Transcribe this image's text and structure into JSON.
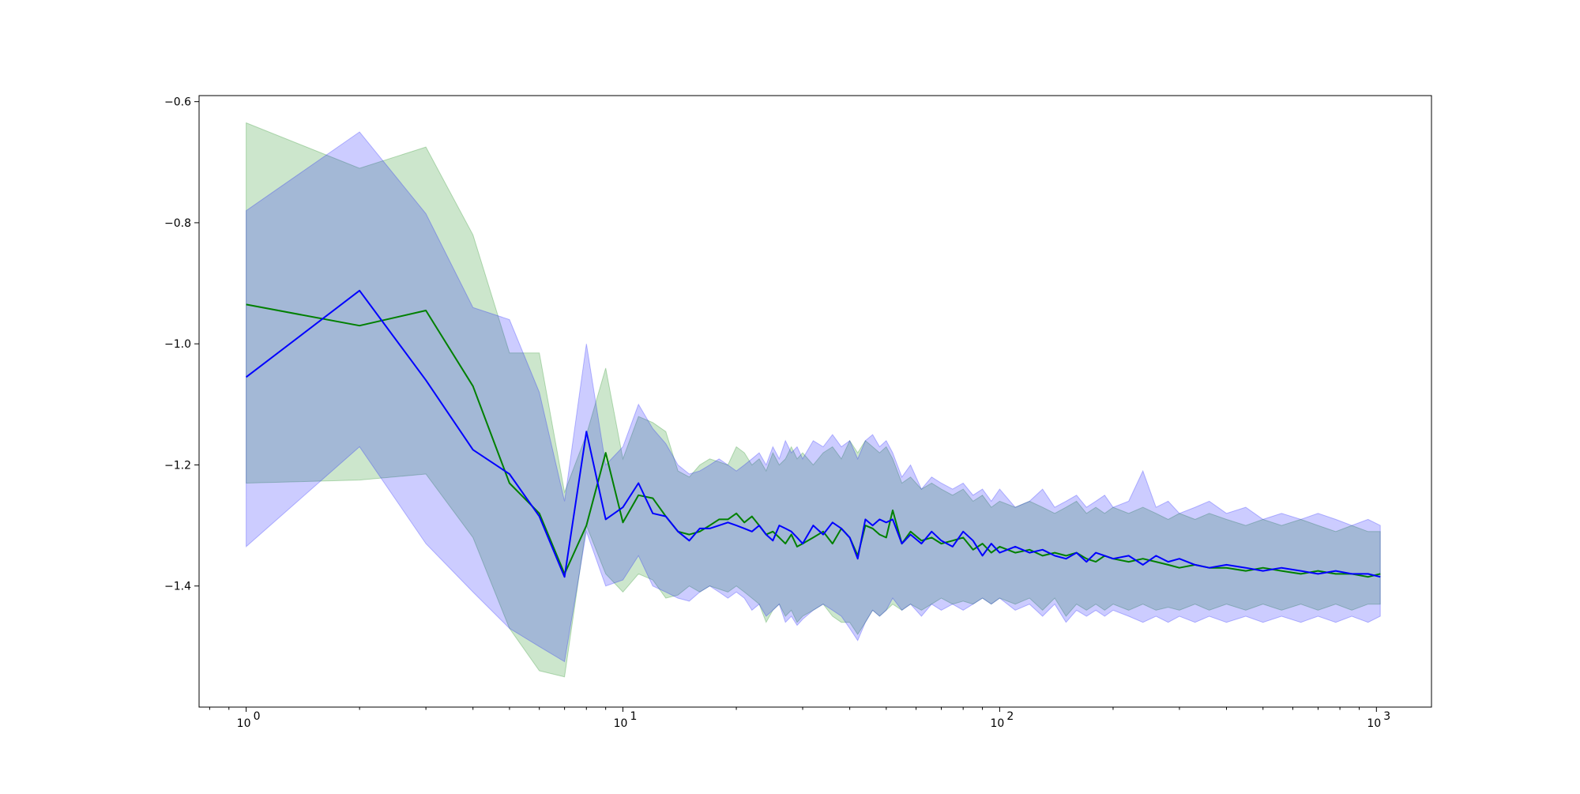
{
  "chart_data": {
    "type": "line",
    "title": "",
    "xlabel": "",
    "ylabel": "",
    "xscale": "log",
    "xlim": [
      0.75,
      1400
    ],
    "ylim": [
      -1.6,
      -0.59
    ],
    "grid": false,
    "legend": "none",
    "x_tick_labels": [
      {
        "value": 1,
        "base": "10",
        "exp": "0"
      },
      {
        "value": 10,
        "base": "10",
        "exp": "1"
      },
      {
        "value": 100,
        "base": "10",
        "exp": "2"
      },
      {
        "value": 1000,
        "base": "10",
        "exp": "3"
      }
    ],
    "y_tick_labels": [
      {
        "value": -1.4,
        "label": "−1.4"
      },
      {
        "value": -1.2,
        "label": "−1.2"
      },
      {
        "value": -1.0,
        "label": "−1.0"
      },
      {
        "value": -0.8,
        "label": "−0.8"
      },
      {
        "value": -0.6,
        "label": "−0.6"
      }
    ],
    "series": [
      {
        "color": "#008000",
        "band_color": "#008000",
        "x": [
          1,
          2,
          3,
          4,
          5,
          6,
          7,
          8,
          9,
          10,
          11,
          12,
          13,
          14,
          15,
          16,
          17,
          18,
          19,
          20,
          21,
          22,
          23,
          24,
          25,
          26,
          27,
          28,
          29,
          30,
          32,
          34,
          36,
          38,
          40,
          42,
          44,
          46,
          48,
          50,
          52,
          55,
          58,
          62,
          66,
          70,
          75,
          80,
          85,
          90,
          95,
          100,
          110,
          120,
          130,
          140,
          150,
          160,
          170,
          180,
          190,
          200,
          220,
          240,
          260,
          280,
          300,
          330,
          360,
          400,
          450,
          500,
          560,
          630,
          700,
          780,
          860,
          950,
          1024
        ],
        "y": [
          -0.935,
          -0.97,
          -0.945,
          -1.07,
          -1.23,
          -1.28,
          -1.38,
          -1.3,
          -1.18,
          -1.295,
          -1.25,
          -1.255,
          -1.285,
          -1.31,
          -1.315,
          -1.31,
          -1.3,
          -1.29,
          -1.29,
          -1.28,
          -1.295,
          -1.285,
          -1.3,
          -1.315,
          -1.31,
          -1.32,
          -1.33,
          -1.315,
          -1.335,
          -1.33,
          -1.32,
          -1.31,
          -1.33,
          -1.305,
          -1.32,
          -1.35,
          -1.3,
          -1.305,
          -1.315,
          -1.32,
          -1.275,
          -1.33,
          -1.31,
          -1.325,
          -1.32,
          -1.33,
          -1.325,
          -1.32,
          -1.34,
          -1.33,
          -1.345,
          -1.335,
          -1.345,
          -1.34,
          -1.35,
          -1.345,
          -1.35,
          -1.345,
          -1.355,
          -1.36,
          -1.35,
          -1.355,
          -1.36,
          -1.355,
          -1.36,
          -1.365,
          -1.37,
          -1.365,
          -1.37,
          -1.37,
          -1.375,
          -1.37,
          -1.375,
          -1.38,
          -1.375,
          -1.38,
          -1.38,
          -1.385,
          -1.38
        ],
        "lower": [
          -1.23,
          -1.225,
          -1.215,
          -1.32,
          -1.47,
          -1.54,
          -1.55,
          -1.3,
          -1.38,
          -1.41,
          -1.38,
          -1.39,
          -1.42,
          -1.415,
          -1.4,
          -1.41,
          -1.4,
          -1.405,
          -1.41,
          -1.4,
          -1.41,
          -1.42,
          -1.43,
          -1.46,
          -1.44,
          -1.43,
          -1.45,
          -1.44,
          -1.46,
          -1.45,
          -1.44,
          -1.43,
          -1.45,
          -1.46,
          -1.46,
          -1.48,
          -1.46,
          -1.44,
          -1.45,
          -1.44,
          -1.43,
          -1.44,
          -1.43,
          -1.44,
          -1.43,
          -1.42,
          -1.43,
          -1.425,
          -1.43,
          -1.42,
          -1.43,
          -1.42,
          -1.43,
          -1.42,
          -1.44,
          -1.42,
          -1.45,
          -1.43,
          -1.44,
          -1.43,
          -1.44,
          -1.43,
          -1.44,
          -1.43,
          -1.44,
          -1.435,
          -1.44,
          -1.43,
          -1.44,
          -1.43,
          -1.44,
          -1.43,
          -1.44,
          -1.43,
          -1.44,
          -1.43,
          -1.44,
          -1.43,
          -1.43
        ],
        "upper": [
          -0.635,
          -0.71,
          -0.675,
          -0.82,
          -1.015,
          -1.015,
          -1.245,
          -1.15,
          -1.04,
          -1.19,
          -1.12,
          -1.13,
          -1.145,
          -1.21,
          -1.22,
          -1.2,
          -1.19,
          -1.195,
          -1.2,
          -1.17,
          -1.18,
          -1.2,
          -1.19,
          -1.21,
          -1.18,
          -1.2,
          -1.19,
          -1.17,
          -1.19,
          -1.18,
          -1.2,
          -1.18,
          -1.17,
          -1.19,
          -1.16,
          -1.18,
          -1.16,
          -1.17,
          -1.18,
          -1.17,
          -1.19,
          -1.23,
          -1.22,
          -1.24,
          -1.23,
          -1.24,
          -1.25,
          -1.24,
          -1.26,
          -1.25,
          -1.27,
          -1.26,
          -1.27,
          -1.26,
          -1.27,
          -1.28,
          -1.27,
          -1.26,
          -1.28,
          -1.27,
          -1.28,
          -1.27,
          -1.28,
          -1.27,
          -1.28,
          -1.29,
          -1.28,
          -1.29,
          -1.28,
          -1.29,
          -1.3,
          -1.29,
          -1.3,
          -1.29,
          -1.3,
          -1.31,
          -1.3,
          -1.31,
          -1.31
        ]
      },
      {
        "color": "#0000ff",
        "band_color": "#0000ff",
        "x": [
          1,
          2,
          3,
          4,
          5,
          6,
          7,
          8,
          9,
          10,
          11,
          12,
          13,
          14,
          15,
          16,
          17,
          18,
          19,
          20,
          21,
          22,
          23,
          24,
          25,
          26,
          27,
          28,
          29,
          30,
          32,
          34,
          36,
          38,
          40,
          42,
          44,
          46,
          48,
          50,
          52,
          55,
          58,
          62,
          66,
          70,
          75,
          80,
          85,
          90,
          95,
          100,
          110,
          120,
          130,
          140,
          150,
          160,
          170,
          180,
          190,
          200,
          220,
          240,
          260,
          280,
          300,
          330,
          360,
          400,
          450,
          500,
          560,
          630,
          700,
          780,
          860,
          950,
          1024
        ],
        "y": [
          -1.055,
          -0.912,
          -1.06,
          -1.175,
          -1.215,
          -1.285,
          -1.385,
          -1.145,
          -1.29,
          -1.27,
          -1.23,
          -1.28,
          -1.285,
          -1.31,
          -1.325,
          -1.305,
          -1.305,
          -1.3,
          -1.295,
          -1.3,
          -1.305,
          -1.31,
          -1.3,
          -1.315,
          -1.325,
          -1.3,
          -1.305,
          -1.31,
          -1.32,
          -1.33,
          -1.3,
          -1.315,
          -1.295,
          -1.305,
          -1.32,
          -1.355,
          -1.29,
          -1.3,
          -1.29,
          -1.295,
          -1.29,
          -1.33,
          -1.315,
          -1.33,
          -1.31,
          -1.325,
          -1.335,
          -1.31,
          -1.325,
          -1.35,
          -1.33,
          -1.345,
          -1.335,
          -1.345,
          -1.34,
          -1.35,
          -1.355,
          -1.345,
          -1.36,
          -1.345,
          -1.35,
          -1.355,
          -1.35,
          -1.365,
          -1.35,
          -1.36,
          -1.355,
          -1.365,
          -1.37,
          -1.365,
          -1.37,
          -1.375,
          -1.37,
          -1.375,
          -1.38,
          -1.375,
          -1.38,
          -1.38,
          -1.385
        ],
        "lower": [
          -1.335,
          -1.17,
          -1.33,
          -1.41,
          -1.47,
          -1.5,
          -1.525,
          -1.31,
          -1.4,
          -1.39,
          -1.35,
          -1.4,
          -1.41,
          -1.42,
          -1.425,
          -1.41,
          -1.4,
          -1.41,
          -1.42,
          -1.41,
          -1.42,
          -1.44,
          -1.43,
          -1.45,
          -1.44,
          -1.43,
          -1.46,
          -1.45,
          -1.465,
          -1.455,
          -1.44,
          -1.43,
          -1.44,
          -1.45,
          -1.47,
          -1.49,
          -1.46,
          -1.44,
          -1.45,
          -1.44,
          -1.42,
          -1.44,
          -1.43,
          -1.45,
          -1.43,
          -1.44,
          -1.43,
          -1.44,
          -1.43,
          -1.42,
          -1.43,
          -1.42,
          -1.44,
          -1.43,
          -1.45,
          -1.43,
          -1.46,
          -1.44,
          -1.45,
          -1.44,
          -1.45,
          -1.44,
          -1.45,
          -1.46,
          -1.45,
          -1.46,
          -1.45,
          -1.46,
          -1.45,
          -1.46,
          -1.45,
          -1.46,
          -1.45,
          -1.46,
          -1.45,
          -1.46,
          -1.45,
          -1.46,
          -1.45
        ],
        "upper": [
          -0.78,
          -0.65,
          -0.785,
          -0.94,
          -0.96,
          -1.08,
          -1.26,
          -1.0,
          -1.2,
          -1.17,
          -1.1,
          -1.14,
          -1.165,
          -1.2,
          -1.215,
          -1.21,
          -1.2,
          -1.19,
          -1.2,
          -1.21,
          -1.2,
          -1.19,
          -1.18,
          -1.2,
          -1.17,
          -1.19,
          -1.16,
          -1.18,
          -1.17,
          -1.19,
          -1.16,
          -1.17,
          -1.15,
          -1.17,
          -1.16,
          -1.19,
          -1.16,
          -1.15,
          -1.17,
          -1.16,
          -1.18,
          -1.22,
          -1.2,
          -1.24,
          -1.22,
          -1.23,
          -1.24,
          -1.23,
          -1.25,
          -1.24,
          -1.26,
          -1.24,
          -1.27,
          -1.26,
          -1.24,
          -1.27,
          -1.26,
          -1.25,
          -1.27,
          -1.26,
          -1.25,
          -1.27,
          -1.26,
          -1.21,
          -1.27,
          -1.26,
          -1.28,
          -1.27,
          -1.26,
          -1.28,
          -1.27,
          -1.29,
          -1.28,
          -1.29,
          -1.28,
          -1.29,
          -1.3,
          -1.29,
          -1.3
        ]
      }
    ]
  }
}
